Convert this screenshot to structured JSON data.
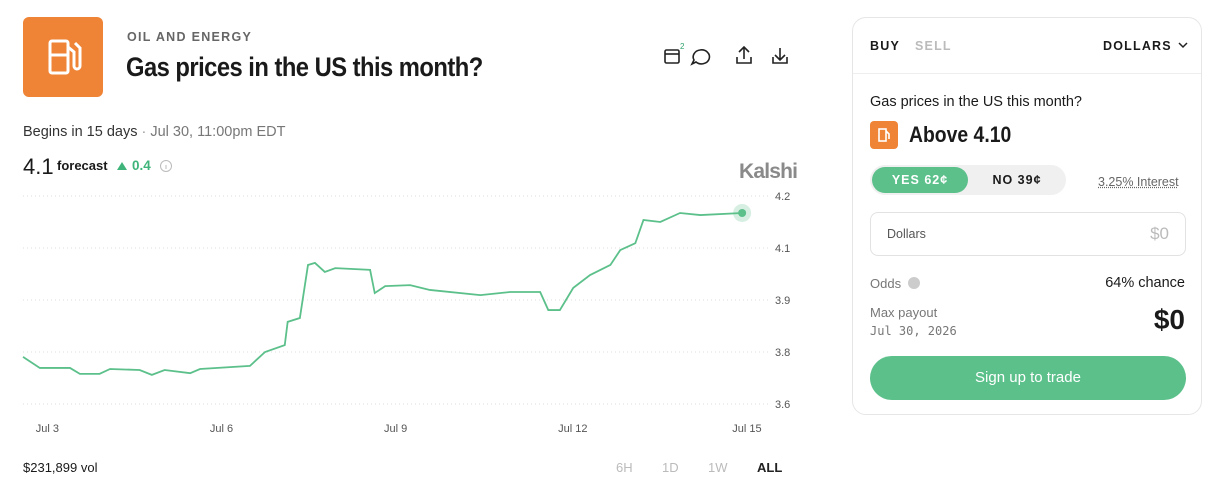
{
  "header": {
    "category": "OIL AND ENERGY",
    "title": "Gas prices in the US this month?",
    "badge": "2"
  },
  "subheader": {
    "begins": "Begins in 15 days",
    "date": "Jul 30, 11:00pm EDT"
  },
  "forecast": {
    "value": "4.1",
    "label": "forecast",
    "change": "0.4"
  },
  "brand": "Kalshi",
  "chart_data": {
    "type": "line",
    "color": "#5cc08b",
    "x": [
      2.78,
      3.07,
      3.59,
      3.76,
      4.1,
      4.28,
      4.79,
      5.0,
      5.22,
      5.66,
      5.83,
      6.69,
      6.95,
      7.29,
      7.34,
      7.55,
      7.69,
      7.81,
      7.98,
      8.16,
      8.76,
      8.84,
      9.02,
      9.45,
      9.79,
      10.66,
      11.17,
      11.69,
      11.83,
      12.03,
      12.26,
      12.55,
      12.9,
      13.07,
      13.33,
      13.47,
      13.76,
      14.1,
      14.45,
      15.17
    ],
    "values": [
      3.736,
      3.704,
      3.704,
      3.687,
      3.687,
      3.701,
      3.698,
      3.684,
      3.698,
      3.689,
      3.701,
      3.71,
      3.75,
      3.77,
      3.837,
      3.848,
      4.001,
      4.007,
      3.981,
      3.992,
      3.987,
      3.92,
      3.94,
      3.943,
      3.929,
      3.914,
      3.923,
      3.923,
      3.871,
      3.871,
      3.935,
      3.972,
      4.001,
      4.044,
      4.064,
      4.131,
      4.125,
      4.151,
      4.145,
      4.151
    ],
    "xlim": [
      2.78,
      15.65
    ],
    "xticks": [
      {
        "value": 3,
        "label": "Jul 3"
      },
      {
        "value": 6,
        "label": "Jul 6"
      },
      {
        "value": 9,
        "label": "Jul 9"
      },
      {
        "value": 12,
        "label": "Jul 12"
      },
      {
        "value": 15,
        "label": "Jul 15"
      }
    ],
    "ylim": [
      3.6,
      4.2
    ],
    "yticks": [
      4.2,
      {
        "value": 4.05,
        "label": "4.1"
      },
      3.9,
      {
        "value": 3.75,
        "label": "3.8"
      },
      3.6
    ],
    "grid": true
  },
  "footer": {
    "volume": "$231,899 vol",
    "ranges": [
      "6H",
      "1D",
      "1W",
      "ALL"
    ]
  },
  "trade": {
    "buy": "BUY",
    "sell": "SELL",
    "currency": "DOLLARS",
    "question": "Gas prices in the US this month?",
    "contract": "Above 4.10",
    "yes": "YES 62¢",
    "no": "NO 39¢",
    "interest": "3.25% Interest",
    "input_label": "Dollars",
    "input_value": "$0",
    "odds_label": "Odds",
    "odds_value": "64% chance",
    "payout_label": "Max payout",
    "payout_date": "Jul 30, 2026",
    "payout_value": "$0",
    "cta": "Sign up to trade"
  }
}
